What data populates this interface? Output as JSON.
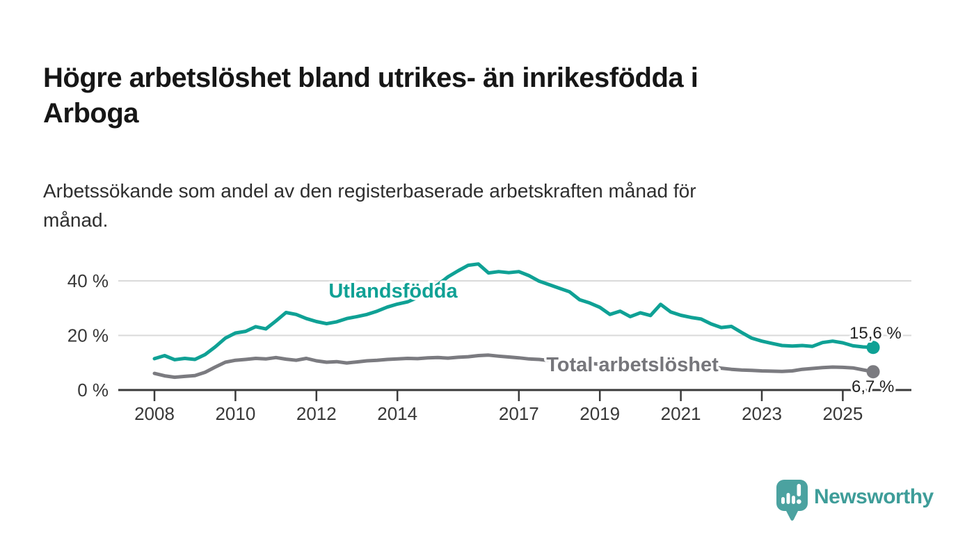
{
  "header": {
    "title": "Högre arbetslöshet bland utrikes- än inrikesfödda i\nArboga",
    "subtitle": "Arbetssökande som andel av den registerbaserade arbetskraften månad för\nmånad."
  },
  "footer": {
    "brand": "Newsworthy",
    "logo_icon": "bar-chart-speech-bubble-icon"
  },
  "colors": {
    "series_foreign_born": "#0FA195",
    "series_total": "#7b7b80",
    "axis": "#3a3a3a",
    "gridline": "#dadada",
    "value_label": "#222222",
    "logo_teal": "#4BA2A0"
  },
  "chart_data": {
    "type": "line",
    "title": "Högre arbetslöshet bland utrikes- än inrikesfödda i Arboga",
    "subtitle": "Arbetssökande som andel av den registerbaserade arbetskraften månad för månad.",
    "xlabel": "",
    "ylabel": "",
    "grid": "horizontal",
    "legend_position": "inline-labels",
    "xlim": [
      2007.1,
      2026.7
    ],
    "ylim": [
      0,
      48
    ],
    "x_ticks": [
      2008,
      2010,
      2012,
      2014,
      2017,
      2019,
      2021,
      2023,
      2025
    ],
    "x_tick_labels": [
      "2008",
      "2010",
      "2012",
      "2014",
      "2017",
      "2019",
      "2021",
      "2023",
      "2025"
    ],
    "y_ticks": [
      0,
      20,
      40
    ],
    "y_tick_labels": [
      "0 %",
      "20 %",
      "40 %"
    ],
    "series": [
      {
        "name": "Utlandsfödda",
        "color": "#0FA195",
        "end_label": "15,6 %",
        "end_value": 15.6,
        "points": [
          [
            2008.0,
            11.5
          ],
          [
            2008.25,
            12.6
          ],
          [
            2008.5,
            11.1
          ],
          [
            2008.75,
            11.6
          ],
          [
            2009.0,
            11.2
          ],
          [
            2009.25,
            13.0
          ],
          [
            2009.5,
            15.8
          ],
          [
            2009.75,
            19.0
          ],
          [
            2010.0,
            20.9
          ],
          [
            2010.25,
            21.5
          ],
          [
            2010.5,
            23.2
          ],
          [
            2010.75,
            22.4
          ],
          [
            2011.0,
            25.3
          ],
          [
            2011.25,
            28.4
          ],
          [
            2011.5,
            27.7
          ],
          [
            2011.75,
            26.2
          ],
          [
            2012.0,
            25.1
          ],
          [
            2012.25,
            24.3
          ],
          [
            2012.5,
            25.0
          ],
          [
            2012.75,
            26.2
          ],
          [
            2013.0,
            26.9
          ],
          [
            2013.25,
            27.7
          ],
          [
            2013.5,
            28.9
          ],
          [
            2013.75,
            30.4
          ],
          [
            2014.0,
            31.5
          ],
          [
            2014.25,
            32.3
          ],
          [
            2014.5,
            33.9
          ],
          [
            2014.75,
            36.2
          ],
          [
            2015.0,
            38.6
          ],
          [
            2015.25,
            41.5
          ],
          [
            2015.5,
            43.7
          ],
          [
            2015.75,
            45.7
          ],
          [
            2016.0,
            46.2
          ],
          [
            2016.25,
            42.9
          ],
          [
            2016.5,
            43.4
          ],
          [
            2016.75,
            43.0
          ],
          [
            2017.0,
            43.4
          ],
          [
            2017.25,
            41.9
          ],
          [
            2017.5,
            39.9
          ],
          [
            2017.75,
            38.6
          ],
          [
            2018.0,
            37.3
          ],
          [
            2018.25,
            36.0
          ],
          [
            2018.5,
            33.1
          ],
          [
            2018.75,
            31.9
          ],
          [
            2019.0,
            30.3
          ],
          [
            2019.25,
            27.7
          ],
          [
            2019.5,
            28.9
          ],
          [
            2019.75,
            26.9
          ],
          [
            2020.0,
            28.3
          ],
          [
            2020.25,
            27.3
          ],
          [
            2020.5,
            31.4
          ],
          [
            2020.75,
            28.6
          ],
          [
            2021.0,
            27.4
          ],
          [
            2021.25,
            26.6
          ],
          [
            2021.5,
            26.0
          ],
          [
            2021.75,
            24.2
          ],
          [
            2022.0,
            22.9
          ],
          [
            2022.25,
            23.3
          ],
          [
            2022.5,
            21.1
          ],
          [
            2022.75,
            19.0
          ],
          [
            2023.0,
            17.9
          ],
          [
            2023.25,
            17.1
          ],
          [
            2023.5,
            16.3
          ],
          [
            2023.75,
            16.1
          ],
          [
            2024.0,
            16.3
          ],
          [
            2024.25,
            16.0
          ],
          [
            2024.5,
            17.4
          ],
          [
            2024.75,
            17.9
          ],
          [
            2025.0,
            17.3
          ],
          [
            2025.25,
            16.2
          ],
          [
            2025.5,
            15.8
          ],
          [
            2025.75,
            15.6
          ]
        ]
      },
      {
        "name": "Total arbetslöshet",
        "color": "#7b7b80",
        "end_label": "6,7 %",
        "end_value": 6.7,
        "points": [
          [
            2008.0,
            6.1
          ],
          [
            2008.25,
            5.2
          ],
          [
            2008.5,
            4.7
          ],
          [
            2008.75,
            5.0
          ],
          [
            2009.0,
            5.3
          ],
          [
            2009.25,
            6.5
          ],
          [
            2009.5,
            8.4
          ],
          [
            2009.75,
            10.2
          ],
          [
            2010.0,
            10.9
          ],
          [
            2010.25,
            11.2
          ],
          [
            2010.5,
            11.6
          ],
          [
            2010.75,
            11.4
          ],
          [
            2011.0,
            11.9
          ],
          [
            2011.25,
            11.3
          ],
          [
            2011.5,
            10.9
          ],
          [
            2011.75,
            11.6
          ],
          [
            2012.0,
            10.7
          ],
          [
            2012.25,
            10.2
          ],
          [
            2012.5,
            10.4
          ],
          [
            2012.75,
            9.9
          ],
          [
            2013.0,
            10.3
          ],
          [
            2013.25,
            10.7
          ],
          [
            2013.5,
            10.9
          ],
          [
            2013.75,
            11.2
          ],
          [
            2014.0,
            11.4
          ],
          [
            2014.25,
            11.6
          ],
          [
            2014.5,
            11.5
          ],
          [
            2014.75,
            11.8
          ],
          [
            2015.0,
            11.9
          ],
          [
            2015.25,
            11.7
          ],
          [
            2015.5,
            12.0
          ],
          [
            2015.75,
            12.2
          ],
          [
            2016.0,
            12.6
          ],
          [
            2016.25,
            12.8
          ],
          [
            2016.5,
            12.4
          ],
          [
            2016.75,
            12.1
          ],
          [
            2017.0,
            11.8
          ],
          [
            2017.25,
            11.4
          ],
          [
            2017.5,
            11.2
          ],
          [
            2017.75,
            10.8
          ],
          [
            2018.0,
            10.5
          ],
          [
            2018.25,
            10.2
          ],
          [
            2018.5,
            9.9
          ],
          [
            2018.75,
            9.7
          ],
          [
            2019.0,
            9.5
          ],
          [
            2019.25,
            9.3
          ],
          [
            2019.5,
            9.4
          ],
          [
            2019.75,
            9.2
          ],
          [
            2020.0,
            9.5
          ],
          [
            2020.25,
            10.1
          ],
          [
            2020.5,
            10.8
          ],
          [
            2020.75,
            10.2
          ],
          [
            2021.0,
            9.8
          ],
          [
            2021.25,
            9.4
          ],
          [
            2021.5,
            9.0
          ],
          [
            2021.75,
            8.5
          ],
          [
            2022.0,
            8.0
          ],
          [
            2022.25,
            7.6
          ],
          [
            2022.5,
            7.3
          ],
          [
            2022.75,
            7.2
          ],
          [
            2023.0,
            7.0
          ],
          [
            2023.25,
            6.9
          ],
          [
            2023.5,
            6.8
          ],
          [
            2023.75,
            7.0
          ],
          [
            2024.0,
            7.6
          ],
          [
            2024.25,
            7.9
          ],
          [
            2024.5,
            8.2
          ],
          [
            2024.75,
            8.4
          ],
          [
            2025.0,
            8.3
          ],
          [
            2025.25,
            8.1
          ],
          [
            2025.5,
            7.4
          ],
          [
            2025.75,
            6.7
          ]
        ]
      }
    ]
  }
}
